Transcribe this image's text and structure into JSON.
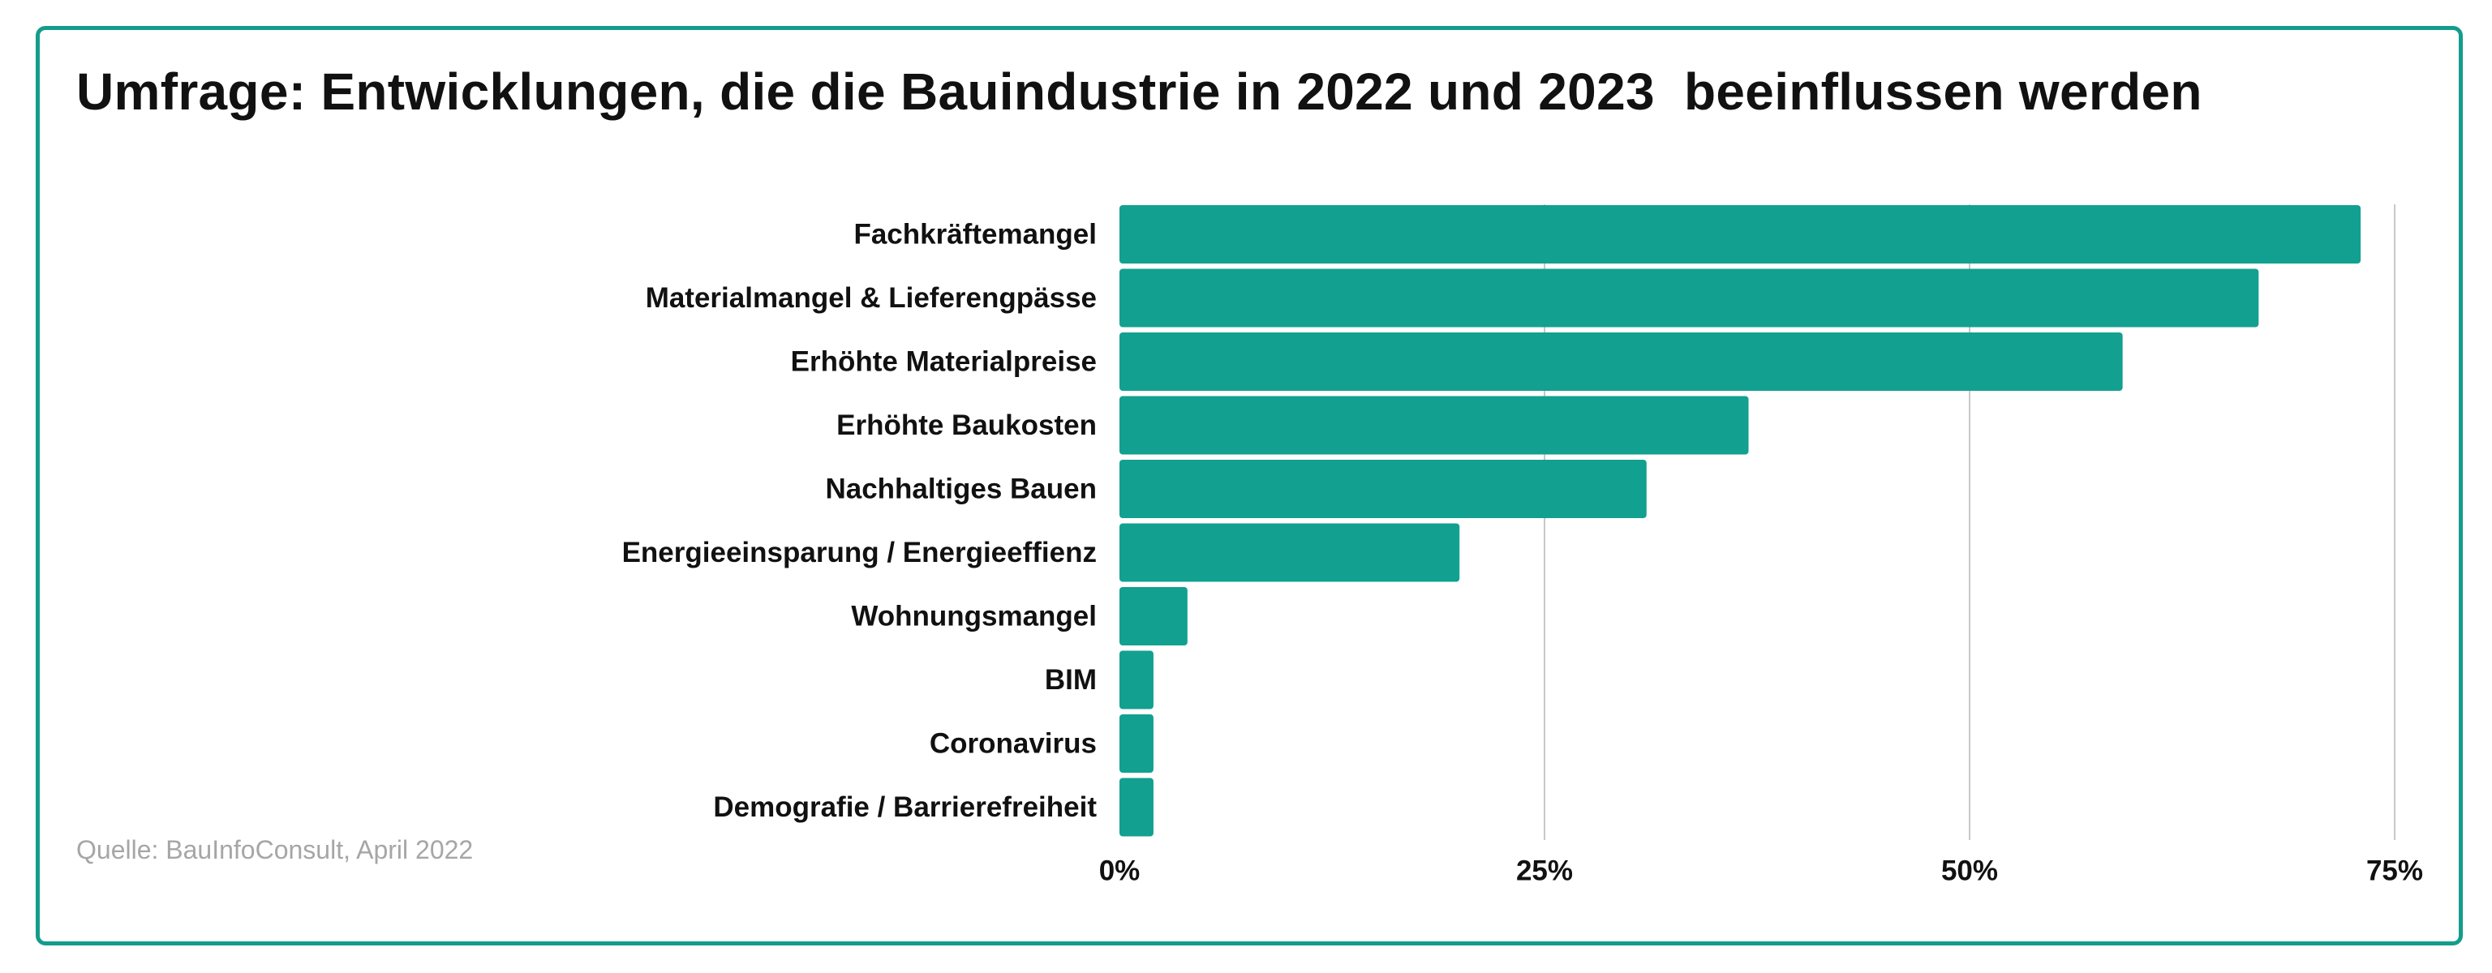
{
  "source": "Quelle: BauInfoConsult, April 2022",
  "colors": {
    "bar": "#12a090",
    "grid": "#c8c8c8",
    "border": "#149c8c"
  },
  "chart_data": {
    "type": "bar",
    "orientation": "horizontal",
    "title": "Umfrage: Entwicklungen, die die Bauindustrie in 2022 und 2023  beeinflussen werden",
    "xlabel": "",
    "ylabel": "",
    "xlim": [
      0,
      75
    ],
    "x_ticks": [
      "0%",
      "25%",
      "50%",
      "75%"
    ],
    "x_tick_values": [
      0,
      25,
      50,
      75
    ],
    "grid": "vertical",
    "legend": "none",
    "categories": [
      "Fachkräftemangel",
      "Materialmangel & Lieferengpässe",
      "Erhöhte Materialpreise",
      "Erhöhte Baukosten",
      "Nachhaltiges Bauen",
      "Energieeinsparung / Energieeffienz",
      "Wohnungsmangel",
      "BIM",
      "Coronavirus",
      "Demografie / Barrierefreiheit"
    ],
    "values": [
      73,
      67,
      59,
      37,
      31,
      20,
      4,
      2,
      2,
      2
    ]
  }
}
